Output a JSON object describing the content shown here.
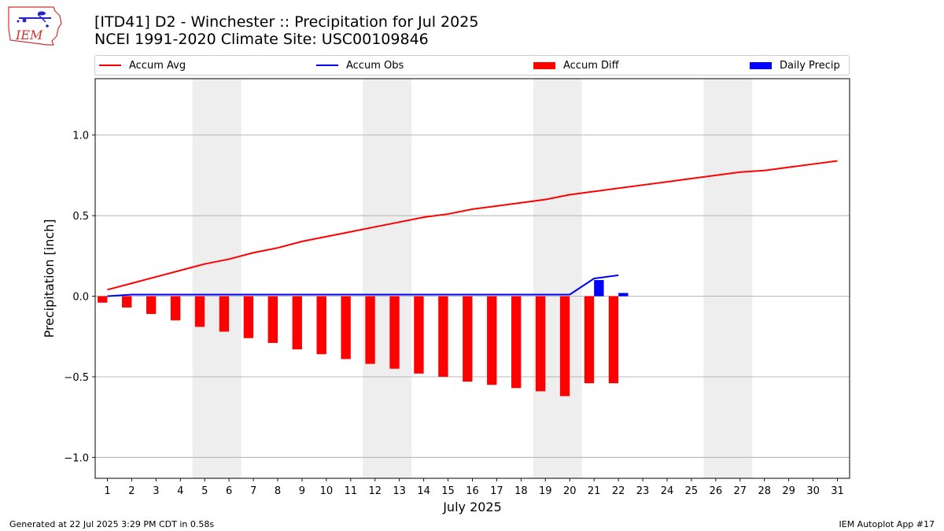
{
  "header": {
    "title_line1": "[ITD41] D2 - Winchester  :: Precipitation for Jul 2025",
    "title_line2": "NCEI 1991-2020 Climate Site: USC00109846",
    "logo_text": "IEM"
  },
  "legend": [
    {
      "label": "Accum Avg",
      "kind": "line",
      "color": "#ff0000"
    },
    {
      "label": "Accum Obs",
      "kind": "line",
      "color": "#0000ff"
    },
    {
      "label": "Accum Diff",
      "kind": "patch",
      "color": "#ff0000"
    },
    {
      "label": "Daily Precip",
      "kind": "patch",
      "color": "#0000ff"
    }
  ],
  "chart_data": {
    "type": "bar",
    "xlabel": "July 2025",
    "ylabel": "Precipitation [inch]",
    "ylim": [
      -1.13,
      1.35
    ],
    "xlim": [
      0.5,
      31.5
    ],
    "yticks": [
      -1.0,
      -0.5,
      0.0,
      0.5,
      1.0
    ],
    "ytick_labels": [
      "−1.0",
      "−0.5",
      "0.0",
      "0.5",
      "1.0"
    ],
    "categories": [
      "1",
      "2",
      "3",
      "4",
      "5",
      "6",
      "7",
      "8",
      "9",
      "10",
      "11",
      "12",
      "13",
      "14",
      "15",
      "16",
      "17",
      "18",
      "19",
      "20",
      "21",
      "22",
      "23",
      "24",
      "25",
      "26",
      "27",
      "28",
      "29",
      "30",
      "31"
    ],
    "grid": "horizontal",
    "weekend_shading": [
      [
        4.5,
        6.5
      ],
      [
        11.5,
        13.5
      ],
      [
        18.5,
        20.5
      ],
      [
        25.5,
        27.5
      ]
    ],
    "series": [
      {
        "name": "Accum Avg",
        "kind": "line",
        "color": "#ff0000",
        "x": [
          1,
          2,
          3,
          4,
          5,
          6,
          7,
          8,
          9,
          10,
          11,
          12,
          13,
          14,
          15,
          16,
          17,
          18,
          19,
          20,
          21,
          22,
          23,
          24,
          25,
          26,
          27,
          28,
          29,
          30,
          31
        ],
        "values": [
          0.04,
          0.08,
          0.12,
          0.16,
          0.2,
          0.23,
          0.27,
          0.3,
          0.34,
          0.37,
          0.4,
          0.43,
          0.46,
          0.49,
          0.51,
          0.54,
          0.56,
          0.58,
          0.6,
          0.63,
          0.65,
          0.67,
          0.69,
          0.71,
          0.73,
          0.75,
          0.77,
          0.78,
          0.8,
          0.82,
          0.84
        ]
      },
      {
        "name": "Accum Obs",
        "kind": "line",
        "color": "#0000ff",
        "x": [
          1,
          2,
          3,
          4,
          5,
          6,
          7,
          8,
          9,
          10,
          11,
          12,
          13,
          14,
          15,
          16,
          17,
          18,
          19,
          20,
          21,
          22
        ],
        "values": [
          0.0,
          0.01,
          0.01,
          0.01,
          0.01,
          0.01,
          0.01,
          0.01,
          0.01,
          0.01,
          0.01,
          0.01,
          0.01,
          0.01,
          0.01,
          0.01,
          0.01,
          0.01,
          0.01,
          0.01,
          0.11,
          0.13
        ]
      },
      {
        "name": "Accum Diff",
        "kind": "bar",
        "color": "#ff0000",
        "x": [
          1,
          2,
          3,
          4,
          5,
          6,
          7,
          8,
          9,
          10,
          11,
          12,
          13,
          14,
          15,
          16,
          17,
          18,
          19,
          20,
          21,
          22
        ],
        "values": [
          -0.04,
          -0.07,
          -0.11,
          -0.15,
          -0.19,
          -0.22,
          -0.26,
          -0.29,
          -0.33,
          -0.36,
          -0.39,
          -0.42,
          -0.45,
          -0.48,
          -0.5,
          -0.53,
          -0.55,
          -0.57,
          -0.59,
          -0.62,
          -0.54,
          -0.54
        ]
      },
      {
        "name": "Daily Precip",
        "kind": "bar",
        "color": "#0000ff",
        "x": [
          1,
          2,
          3,
          4,
          5,
          6,
          7,
          8,
          9,
          10,
          11,
          12,
          13,
          14,
          15,
          16,
          17,
          18,
          19,
          20,
          21,
          22
        ],
        "values": [
          0,
          0,
          0,
          0,
          0,
          0,
          0,
          0,
          0,
          0,
          0,
          0,
          0,
          0,
          0,
          0,
          0,
          0,
          0,
          0,
          0.1,
          0.02
        ]
      }
    ]
  },
  "footer": {
    "left": "Generated at 22 Jul 2025 3:29 PM CDT in 0.58s",
    "right": "IEM Autoplot App #17"
  }
}
